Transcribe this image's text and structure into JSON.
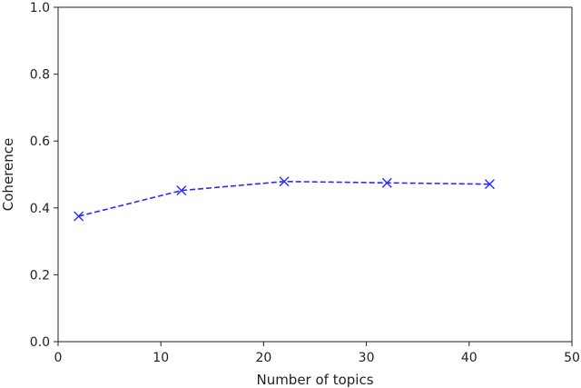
{
  "chart_data": {
    "type": "line",
    "title": "",
    "xlabel": "Number of topics",
    "ylabel": "Coherence",
    "xlim": [
      0,
      50
    ],
    "ylim": [
      0.0,
      1.0
    ],
    "xticks": [
      0,
      10,
      20,
      30,
      40,
      50
    ],
    "xtick_labels": [
      "0",
      "10",
      "20",
      "30",
      "40",
      "50"
    ],
    "yticks": [
      0.0,
      0.2,
      0.4,
      0.6,
      0.8,
      1.0
    ],
    "ytick_labels": [
      "0.0",
      "0.2",
      "0.4",
      "0.6",
      "0.8",
      "1.0"
    ],
    "grid": false,
    "series": [
      {
        "color": "#2b2bff",
        "line_style": "dashed",
        "marker": "x",
        "x": [
          2,
          12,
          22,
          32,
          42
        ],
        "y": [
          0.375,
          0.452,
          0.479,
          0.475,
          0.471
        ]
      }
    ]
  }
}
